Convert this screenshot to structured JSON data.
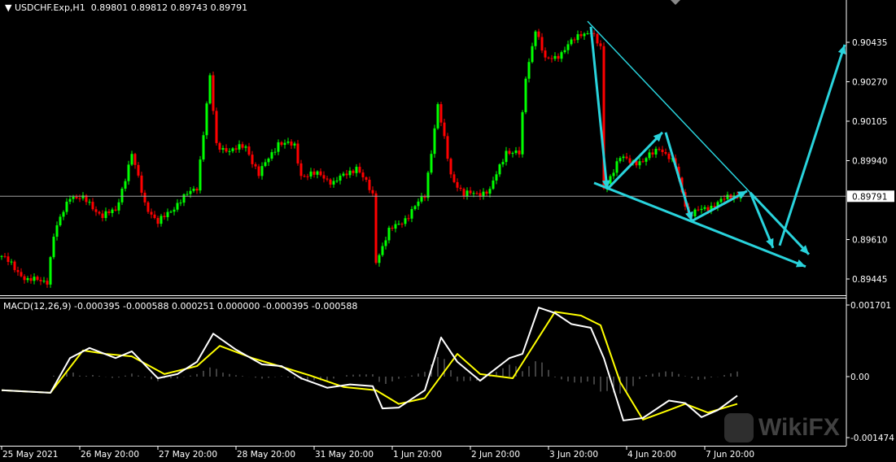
{
  "header": {
    "symbol": "USDCHF.Exp,H1",
    "ohlc": "0.89801 0.89812 0.89743 0.89791"
  },
  "macd_header": {
    "label": "MACD(12,26,9) -0.000395 -0.000588 0.000251 0.000000 -0.000395 -0.000588"
  },
  "watermark": {
    "text": "WikiFX"
  },
  "colors": {
    "background": "#000000",
    "bull": "#00ff00",
    "bear": "#ff0000",
    "drawing": "#29d3dc",
    "macd": "#ffffff",
    "signal": "#ffff00",
    "histogram": "#808080",
    "bid_line": "#a0a0a0"
  },
  "chart_data": [
    {
      "type": "candlestick",
      "symbol": "USDCHF.Exp",
      "timeframe": "H1",
      "price_ticks": [
        "0.90435",
        "0.90270",
        "0.90105",
        "0.89940",
        "0.89610",
        "0.89445"
      ],
      "ylim": [
        0.89378,
        0.90585
      ],
      "current_price": "0.89791",
      "time_ticks": [
        "25 May 2021",
        "26 May 20:00",
        "27 May 20:00",
        "28 May 20:00",
        "31 May 20:00",
        "1 Jun 20:00",
        "2 Jun 20:00",
        "3 Jun 20:00",
        "4 Jun 20:00",
        "7 Jun 20:00"
      ],
      "close_path": [
        [
          "25 May 20:00",
          0.89541
        ],
        [
          "26 May 04:00",
          0.89439
        ],
        [
          "26 May 10:00",
          0.89439
        ],
        [
          "26 May 12:00",
          0.89626
        ],
        [
          "26 May 17:00",
          0.89796
        ],
        [
          "26 May 21:00",
          0.89779
        ],
        [
          "27 May 03:00",
          0.89711
        ],
        [
          "27 May 07:00",
          0.89728
        ],
        [
          "27 May 12:00",
          0.89966
        ],
        [
          "27 May 16:00",
          0.89762
        ],
        [
          "27 May 20:00",
          0.89677
        ],
        [
          "28 May 02:00",
          0.89762
        ],
        [
          "28 May 08:00",
          0.8983
        ],
        [
          "28 May 12:00",
          0.90289
        ],
        [
          "28 May 14:00",
          0.9
        ],
        [
          "28 May 19:00",
          0.89983
        ],
        [
          "28 May 23:00",
          0.9
        ],
        [
          "31 May 03:00",
          0.89881
        ],
        [
          "31 May 09:00",
          0.90017
        ],
        [
          "31 May 14:00",
          0.9
        ],
        [
          "31 May 16:00",
          0.89881
        ],
        [
          "31 May 22:00",
          0.89881
        ],
        [
          "1 Jun 02:00",
          0.89847
        ],
        [
          "1 Jun 09:00",
          0.89915
        ],
        [
          "1 Jun 14:00",
          0.89796
        ],
        [
          "1 Jun 15:00",
          0.89524
        ],
        [
          "1 Jun 19:00",
          0.89643
        ],
        [
          "2 Jun 01:00",
          0.89711
        ],
        [
          "2 Jun 06:00",
          0.89796
        ],
        [
          "2 Jun 10:00",
          0.9017
        ],
        [
          "2 Jun 14:00",
          0.89881
        ],
        [
          "2 Jun 18:00",
          0.89796
        ],
        [
          "3 Jun 02:00",
          0.89813
        ],
        [
          "3 Jun 07:00",
          0.89983
        ],
        [
          "3 Jun 11:00",
          0.89966
        ],
        [
          "3 Jun 13:00",
          0.90289
        ],
        [
          "3 Jun 16:00",
          0.90493
        ],
        [
          "3 Jun 19:00",
          0.90357
        ],
        [
          "4 Jun 00:00",
          0.90391
        ],
        [
          "4 Jun 06:00",
          0.90476
        ],
        [
          "4 Jun 09:00",
          0.90476
        ],
        [
          "4 Jun 12:00",
          0.90408
        ],
        [
          "4 Jun 13:00",
          0.8983
        ],
        [
          "4 Jun 18:00",
          0.89949
        ],
        [
          "7 Jun 01:00",
          0.89932
        ],
        [
          "7 Jun 06:00",
          0.9
        ],
        [
          "7 Jun 11:00",
          0.89915
        ],
        [
          "7 Jun 15:00",
          0.89711
        ],
        [
          "7 Jun 21:00",
          0.89745
        ],
        [
          "8 Jun 05:00",
          0.89796
        ],
        [
          "8 Jun 07:00",
          0.89791
        ]
      ],
      "drawings": [
        {
          "kind": "trendline",
          "from": [
            "4 Jun 08:00",
            0.90523
          ],
          "to": [
            "8 Jun 10:00",
            0.89806
          ]
        },
        {
          "kind": "arrow",
          "from": [
            "8 Jun 10:00",
            0.89806
          ],
          "to": [
            "9 Jun 04:00",
            0.89548
          ]
        },
        {
          "kind": "arrow",
          "from": [
            "4 Jun 10:00",
            0.89847
          ],
          "to": [
            "9 Jun 03:00",
            0.89497
          ]
        },
        {
          "kind": "arrow",
          "from": [
            "4 Jun 09:00",
            0.905
          ],
          "to": [
            "4 Jun 14:00",
            0.8982
          ]
        },
        {
          "kind": "arrow",
          "from": [
            "4 Jun 14:00",
            0.8982
          ],
          "to": [
            "7 Jun 07:00",
            0.90058
          ]
        },
        {
          "kind": "arrow",
          "from": [
            "7 Jun 08:00",
            0.90058
          ],
          "to": [
            "7 Jun 16:00",
            0.89687
          ]
        },
        {
          "kind": "arrow",
          "from": [
            "7 Jun 16:00",
            0.89687
          ],
          "to": [
            "8 Jun 09:00",
            0.89813
          ]
        },
        {
          "kind": "arrow",
          "from": [
            "8 Jun 10:00",
            0.89806
          ],
          "to": [
            "8 Jun 17:00",
            0.89575
          ]
        },
        {
          "kind": "arrow",
          "from": [
            "8 Jun 19:00",
            0.89585
          ],
          "to": [
            "9 Jun 15:00",
            0.90425
          ]
        }
      ]
    },
    {
      "type": "line",
      "title": "MACD(12,26,9)",
      "ylim": [
        -0.001474,
        0.001701
      ],
      "y_ticks": [
        "0.001701",
        "0.00",
        "-0.001474"
      ],
      "series": [
        {
          "name": "MACD",
          "points": [
            [
              "25 May 20:00",
              -0.00033
            ],
            [
              "26 May 11:00",
              -0.00039
            ],
            [
              "26 May 17:00",
              0.00044
            ],
            [
              "26 May 23:00",
              0.00068
            ],
            [
              "27 May 07:00",
              0.00044
            ],
            [
              "27 May 12:00",
              0.0006
            ],
            [
              "27 May 20:00",
              -4e-05
            ],
            [
              "28 May 02:00",
              6e-05
            ],
            [
              "28 May 08:00",
              0.00035
            ],
            [
              "28 May 13:00",
              0.00102
            ],
            [
              "28 May 20:00",
              0.00064
            ],
            [
              "31 May 04:00",
              0.00029
            ],
            [
              "31 May 10:00",
              0.00025
            ],
            [
              "31 May 16:00",
              -4e-05
            ],
            [
              "1 Jun 00:00",
              -0.00027
            ],
            [
              "1 Jun 07:00",
              -0.00019
            ],
            [
              "1 Jun 14:00",
              -0.00023
            ],
            [
              "1 Jun 17:00",
              -0.00077
            ],
            [
              "1 Jun 22:00",
              -0.00075
            ],
            [
              "2 Jun 06:00",
              -0.00033
            ],
            [
              "2 Jun 11:00",
              0.00093
            ],
            [
              "2 Jun 16:00",
              0.00035
            ],
            [
              "2 Jun 23:00",
              -0.0001
            ],
            [
              "3 Jun 08:00",
              0.00044
            ],
            [
              "3 Jun 12:00",
              0.00054
            ],
            [
              "3 Jun 17:00",
              0.00164
            ],
            [
              "3 Jun 22:00",
              0.00151
            ],
            [
              "4 Jun 03:00",
              0.00125
            ],
            [
              "4 Jun 09:00",
              0.00116
            ],
            [
              "4 Jun 13:00",
              0.00044
            ],
            [
              "4 Jun 19:00",
              -0.00106
            ],
            [
              "7 Jun 01:00",
              -0.001
            ],
            [
              "7 Jun 09:00",
              -0.00058
            ],
            [
              "7 Jun 14:00",
              -0.00064
            ],
            [
              "7 Jun 19:00",
              -0.00098
            ],
            [
              "8 Jun 00:00",
              -0.00081
            ],
            [
              "8 Jun 06:00",
              -0.00046
            ]
          ]
        },
        {
          "name": "Signal",
          "points": [
            [
              "25 May 20:00",
              -0.00033
            ],
            [
              "26 May 11:00",
              -0.00039
            ],
            [
              "26 May 21:00",
              0.00062
            ],
            [
              "27 May 04:00",
              0.00054
            ],
            [
              "27 May 12:00",
              0.00048
            ],
            [
              "27 May 22:00",
              6e-05
            ],
            [
              "28 May 08:00",
              0.00025
            ],
            [
              "28 May 15:00",
              0.00073
            ],
            [
              "31 May 01:00",
              0.00044
            ],
            [
              "31 May 11:00",
              0.00021
            ],
            [
              "31 May 19:00",
              2e-05
            ],
            [
              "1 Jun 05:00",
              -0.00025
            ],
            [
              "1 Jun 15:00",
              -0.00033
            ],
            [
              "1 Jun 22:00",
              -0.00066
            ],
            [
              "2 Jun 06:00",
              -0.00052
            ],
            [
              "2 Jun 16:00",
              0.00054
            ],
            [
              "2 Jun 23:00",
              6e-05
            ],
            [
              "3 Jun 09:00",
              -4e-05
            ],
            [
              "3 Jun 22:00",
              0.00154
            ],
            [
              "4 Jun 06:00",
              0.00145
            ],
            [
              "4 Jun 12:00",
              0.00122
            ],
            [
              "4 Jun 18:00",
              -0.00013
            ],
            [
              "7 Jun 01:00",
              -0.00104
            ],
            [
              "7 Jun 09:00",
              -0.00081
            ],
            [
              "7 Jun 14:00",
              -0.00066
            ],
            [
              "7 Jun 21:00",
              -0.00087
            ],
            [
              "8 Jun 06:00",
              -0.00066
            ]
          ]
        }
      ]
    }
  ]
}
